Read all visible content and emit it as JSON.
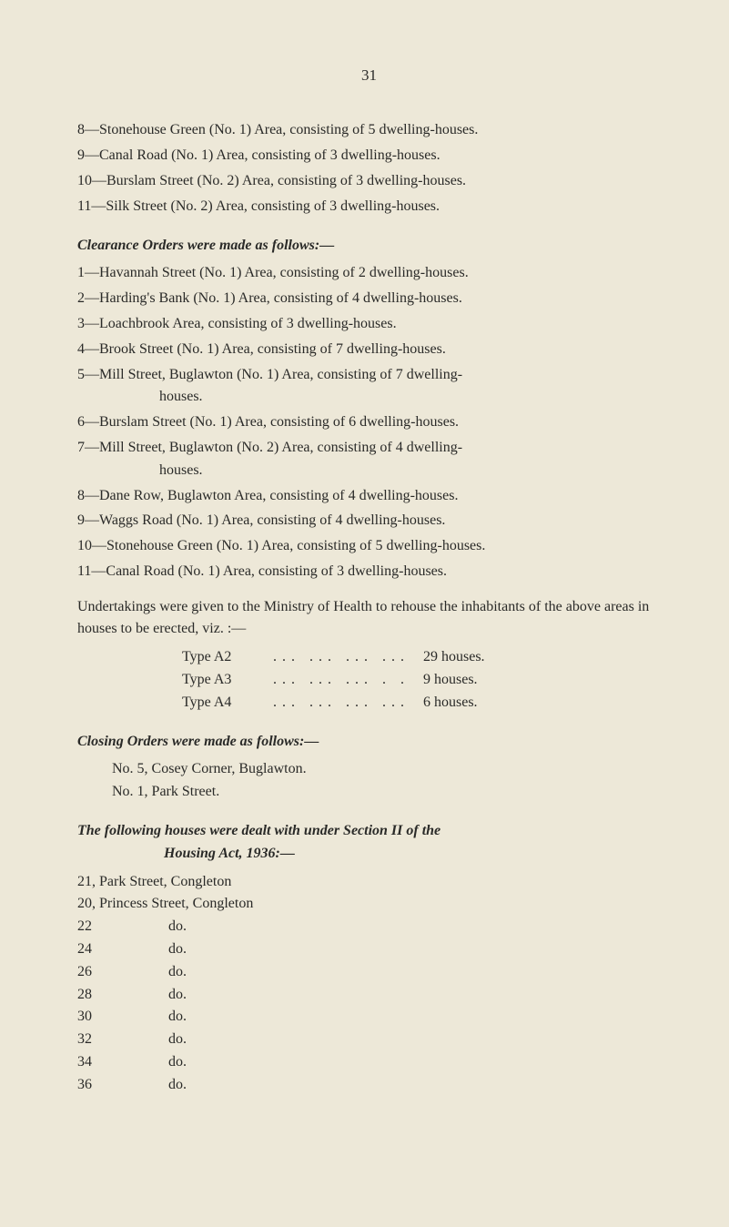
{
  "pageNumber": "31",
  "initialList": [
    {
      "num": "8",
      "text": "—Stonehouse Green (No. 1) Area, consisting of 5 dwelling-houses."
    },
    {
      "num": "9",
      "text": "—Canal Road (No. 1) Area, consisting of 3 dwelling-houses."
    },
    {
      "num": "10",
      "text": "—Burslam Street (No. 2) Area, consisting of 3 dwelling-houses."
    },
    {
      "num": "11",
      "text": "—Silk Street (No. 2) Area, consisting of 3 dwelling-houses."
    }
  ],
  "clearanceHeading": "Clearance Orders were made as follows:—",
  "clearanceList": [
    {
      "num": "1",
      "text": "—Havannah Street (No. 1) Area, consisting of 2 dwelling-houses."
    },
    {
      "num": "2",
      "text": "—Harding's Bank (No. 1) Area, consisting of 4 dwelling-houses."
    },
    {
      "num": "3",
      "text": "—Loachbrook Area, consisting of 3 dwelling-houses."
    },
    {
      "num": "4",
      "text": "—Brook Street (No. 1) Area, consisting of 7 dwelling-houses."
    },
    {
      "num": "5",
      "text": "—Mill Street, Buglawton (No. 1) Area, consisting of 7 dwelling-",
      "cont": "houses."
    },
    {
      "num": "6",
      "text": "—Burslam Street (No. 1) Area, consisting of 6 dwelling-houses."
    },
    {
      "num": "7",
      "text": "—Mill Street, Buglawton (No. 2) Area, consisting of 4 dwelling-",
      "cont": "houses."
    },
    {
      "num": "8",
      "text": "—Dane Row, Buglawton Area, consisting of 4 dwelling-houses."
    },
    {
      "num": "9",
      "text": "—Waggs Road (No. 1) Area, consisting of 4 dwelling-houses."
    },
    {
      "num": "10",
      "text": "—Stonehouse Green (No. 1) Area, consisting of 5 dwelling-houses."
    },
    {
      "num": "11",
      "text": "—Canal Road (No. 1) Area, consisting of 3 dwelling-houses."
    }
  ],
  "undertakingsText": "Undertakings were given to the Ministry of Health to rehouse the inhabitants of the above areas in houses to be erected, viz. :—",
  "types": [
    {
      "label": "Type A2",
      "dots": "...   ...   ...   ...",
      "value": "29 houses."
    },
    {
      "label": "Type A3",
      "dots": "...   ...   ...   . .",
      "value": "9 houses."
    },
    {
      "label": "Type A4",
      "dots": "...   ...   ...   ...",
      "value": "6 houses."
    }
  ],
  "closingHeading": "Closing Orders were made as follows:—",
  "closingList": [
    "No. 5, Cosey Corner, Buglawton.",
    "No. 1, Park Street."
  ],
  "followingHeading1": "The following houses were dealt with under Section II of the",
  "followingHeading2": "Housing Act, 1936:—",
  "followingList": [
    "21, Park Street, Congleton",
    "20, Princess Street, Congleton"
  ],
  "doList": [
    {
      "num": "22",
      "text": "do."
    },
    {
      "num": "24",
      "text": "do."
    },
    {
      "num": "26",
      "text": "do."
    },
    {
      "num": "28",
      "text": "do."
    },
    {
      "num": "30",
      "text": "do."
    },
    {
      "num": "32",
      "text": "do."
    },
    {
      "num": "34",
      "text": "do."
    },
    {
      "num": "36",
      "text": "do."
    }
  ]
}
